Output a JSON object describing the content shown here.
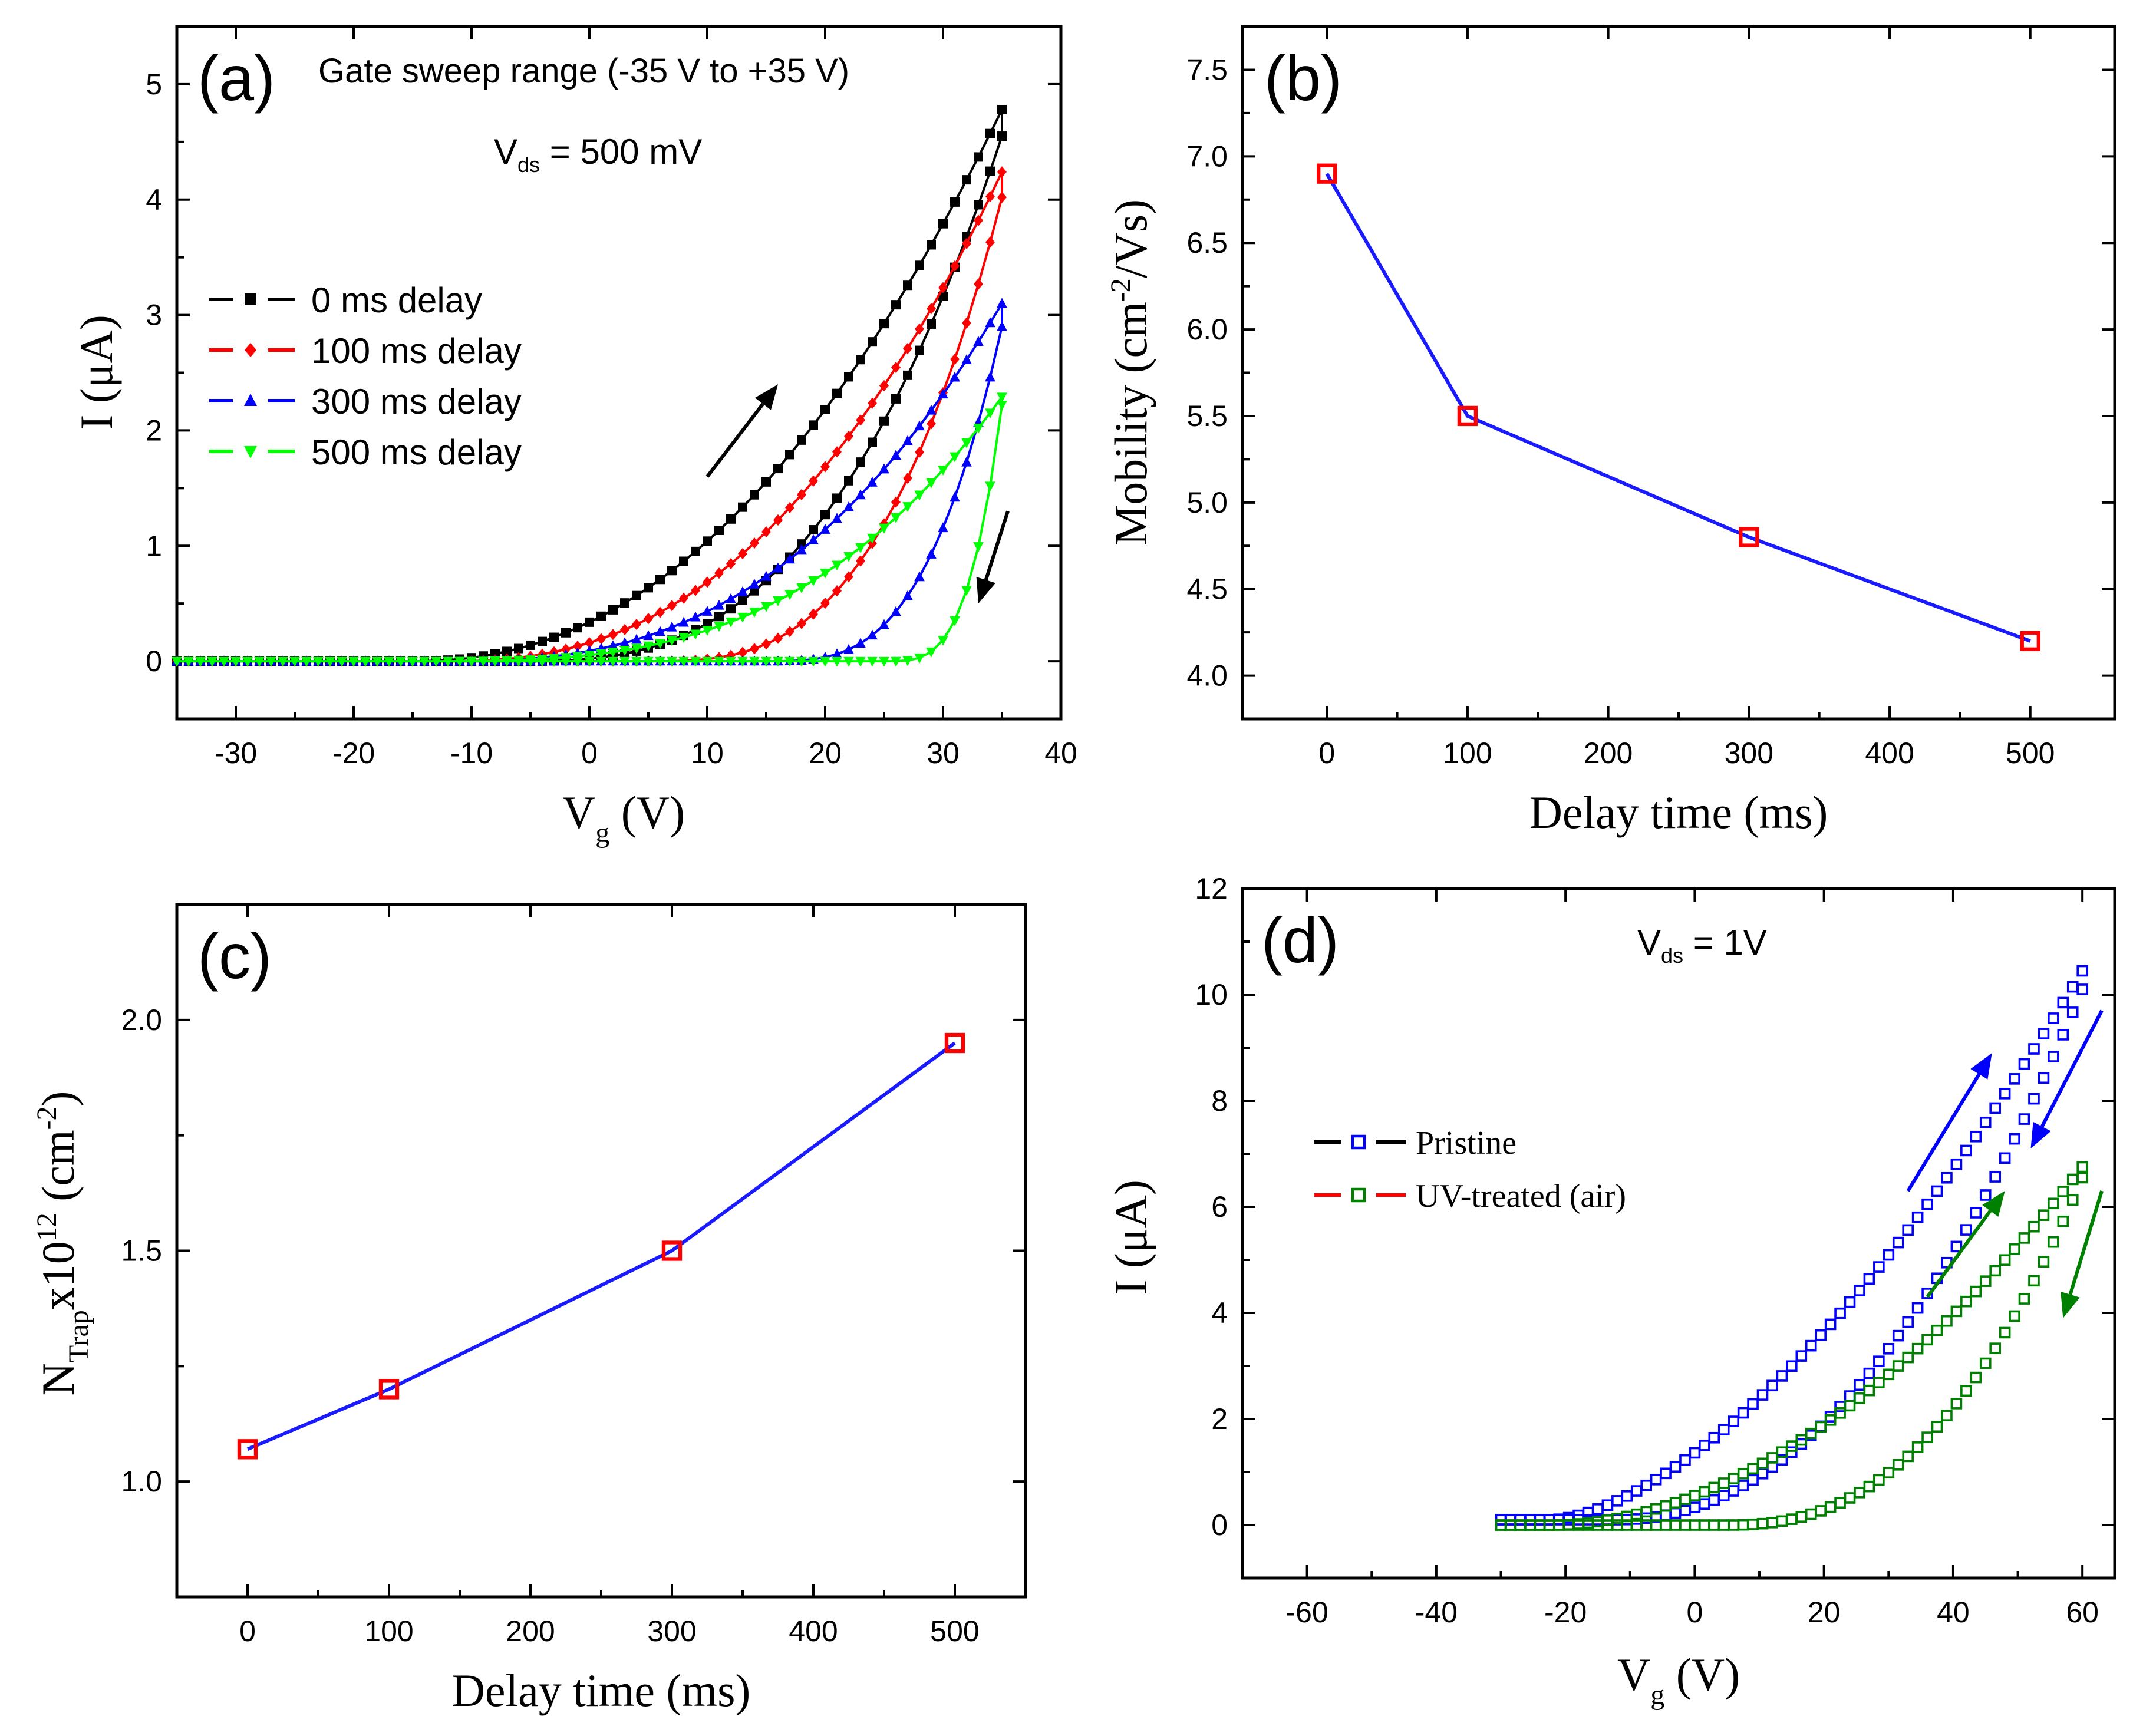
{
  "chart_data": [
    {
      "panel": "(a)",
      "type": "line",
      "annotation_title": "Gate sweep range (-35 V to +35 V)",
      "annotation_vds": {
        "main": "V",
        "sub": "ds",
        "rest": " = 500 mV",
        "color": "#1a1aff"
      },
      "xlabel": {
        "main": "V",
        "sub": "g",
        "rest": " (V)"
      },
      "ylabel": "I (μA)",
      "xlim": [
        -35,
        40
      ],
      "ylim": [
        -0.5,
        5.5
      ],
      "xticks": [
        -30,
        -20,
        -10,
        0,
        10,
        20,
        30,
        40
      ],
      "xtick_labels": [
        "-30",
        "-20",
        "-10",
        "0",
        "10",
        "20",
        "30",
        "40"
      ],
      "yticks": [
        0,
        1,
        2,
        3,
        4,
        5
      ],
      "ytick_labels": [
        "0",
        "1",
        "2",
        "3",
        "4",
        "5"
      ],
      "legend_position": "middle-left",
      "arrows": [
        {
          "from": [
            10,
            1.6
          ],
          "to": [
            16,
            2.4
          ],
          "color": "#000000"
        },
        {
          "from": [
            35.5,
            1.3
          ],
          "to": [
            33,
            0.5
          ],
          "color": "#000000"
        }
      ],
      "series": [
        {
          "name": "0 ms delay",
          "color": "#000000",
          "marker": "square",
          "Vth_fwd": -15,
          "I_max": 4.78,
          "Vth_rev": -6,
          "n": 2.2,
          "I_mid": 4.55
        },
        {
          "name": "100 ms delay",
          "color": "#ff0000",
          "marker": "diamond",
          "Vth_fwd": -12,
          "I_max": 4.24,
          "Vth_rev": 5,
          "n": 2.4,
          "I_mid": 4.02
        },
        {
          "name": "300 ms delay",
          "color": "#0000ff",
          "marker": "triangle-up",
          "Vth_fwd": -12,
          "I_max": 3.1,
          "Vth_rev": 15,
          "n": 2.6,
          "I_mid": 2.9
        },
        {
          "name": "500 ms delay",
          "color": "#00ff00",
          "marker": "triangle-down",
          "Vth_fwd": -14,
          "I_max": 2.29,
          "Vth_rev": 25,
          "n": 3.0,
          "I_mid": 2.22
        }
      ]
    },
    {
      "panel": "(b)",
      "type": "line",
      "xlabel": "Delay time (ms)",
      "ylabel": {
        "main": "Mobility (cm",
        "sup": "-2",
        "rest": "/Vs)"
      },
      "xlim": [
        -60,
        560
      ],
      "ylim": [
        3.75,
        7.75
      ],
      "xticks": [
        0,
        100,
        200,
        300,
        400,
        500
      ],
      "xtick_labels": [
        "0",
        "100",
        "200",
        "300",
        "400",
        "500"
      ],
      "yticks": [
        4.0,
        4.5,
        5.0,
        5.5,
        6.0,
        6.5,
        7.0,
        7.5
      ],
      "ytick_labels": [
        "4.0",
        "4.5",
        "5.0",
        "5.5",
        "6.0",
        "6.5",
        "7.0",
        "7.5"
      ],
      "x": [
        0,
        100,
        300,
        500
      ],
      "y": [
        6.9,
        5.5,
        4.8,
        4.2
      ],
      "line_color": "#1a1aff",
      "marker_color": "#ff0000"
    },
    {
      "panel": "(c)",
      "type": "line",
      "xlabel": "Delay time (ms)",
      "ylabel": {
        "main": "N",
        "sub": "Trap",
        "mid": "x10",
        "sup": "12",
        "mid2": " (cm",
        "sup2": "-2",
        "end": ")"
      },
      "xlim": [
        -50,
        550
      ],
      "ylim": [
        0.75,
        2.25
      ],
      "xticks": [
        0,
        100,
        200,
        300,
        400,
        500
      ],
      "xtick_labels": [
        "0",
        "100",
        "200",
        "300",
        "400",
        "500"
      ],
      "yticks": [
        1.0,
        1.5,
        2.0
      ],
      "ytick_labels": [
        "1.0",
        "1.5",
        "2.0"
      ],
      "x": [
        0,
        100,
        300,
        500
      ],
      "y": [
        1.07,
        1.2,
        1.5,
        1.95
      ],
      "line_color": "#1a1aff",
      "marker_color": "#ff0000"
    },
    {
      "panel": "(d)",
      "type": "scatter",
      "annotation_vds": {
        "main": "V",
        "sub": "ds",
        "rest": " = 1V",
        "color": "#ff1a1a"
      },
      "xlabel": {
        "main": "V",
        "sub": "g",
        "rest": " (V)"
      },
      "ylabel": "I (μA)",
      "xlim": [
        -70,
        65
      ],
      "ylim": [
        -1,
        12
      ],
      "xticks": [
        -60,
        -40,
        -20,
        0,
        20,
        40,
        60
      ],
      "xtick_labels": [
        "-60",
        "-40",
        "-20",
        "0",
        "20",
        "40",
        "60"
      ],
      "yticks": [
        0,
        2,
        4,
        6,
        8,
        10,
        12
      ],
      "ytick_labels": [
        "0",
        "2",
        "4",
        "6",
        "8",
        "10",
        "12"
      ],
      "legend_position": "middle-left",
      "legend": [
        {
          "name": "Pristine",
          "line_color": "#000000",
          "marker_color": "#0000ff"
        },
        {
          "name": "UV-treated (air)",
          "line_color": "#ff0000",
          "marker_color": "#008000"
        }
      ],
      "arrows": [
        {
          "from": [
            33,
            6.3
          ],
          "to": [
            46,
            8.9
          ],
          "color": "#0000ff"
        },
        {
          "from": [
            63,
            9.7
          ],
          "to": [
            52,
            7.1
          ],
          "color": "#0000ff"
        },
        {
          "from": [
            36,
            4.3
          ],
          "to": [
            48,
            6.3
          ],
          "color": "#008000"
        },
        {
          "from": [
            63,
            6.3
          ],
          "to": [
            57,
            3.9
          ],
          "color": "#008000"
        }
      ],
      "series": [
        {
          "name": "Pristine",
          "color": "#0000ff",
          "x_start": -30,
          "x_end": 60,
          "I_max": 10.35,
          "Vth_fwd": -22,
          "Vth_rev": -12,
          "n": 1.6,
          "I_mid": 10.0,
          "offset": 0.1
        },
        {
          "name": "UV-treated (air)",
          "color": "#008000",
          "x_start": -30,
          "x_end": 60,
          "I_max": 6.75,
          "Vth_fwd": -22,
          "Vth_rev": 5,
          "n": 1.9,
          "I_mid": 6.55,
          "offset": 0.0
        }
      ]
    }
  ]
}
